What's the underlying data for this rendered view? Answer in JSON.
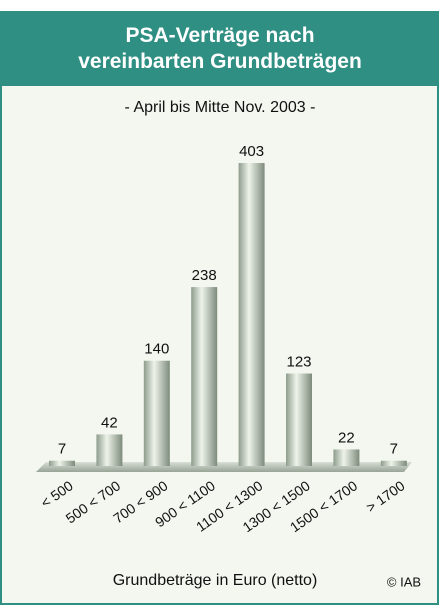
{
  "chart_data": {
    "type": "bar",
    "title": "PSA-Verträge nach vereinbarten Grundbeträgen",
    "subtitle": "- April bis Mitte Nov. 2003 -",
    "x_label": "Grundbeträge in Euro (netto)",
    "annotation": "© IAB",
    "categories": [
      "< 500",
      "500 < 700",
      "700 < 900",
      "900 < 1100",
      "1100 < 1300",
      "1300 < 1500",
      "1500 < 1700",
      "> 1700"
    ],
    "values": [
      7,
      42,
      140,
      238,
      403,
      123,
      22,
      7
    ],
    "color": "#b9c4b4"
  }
}
